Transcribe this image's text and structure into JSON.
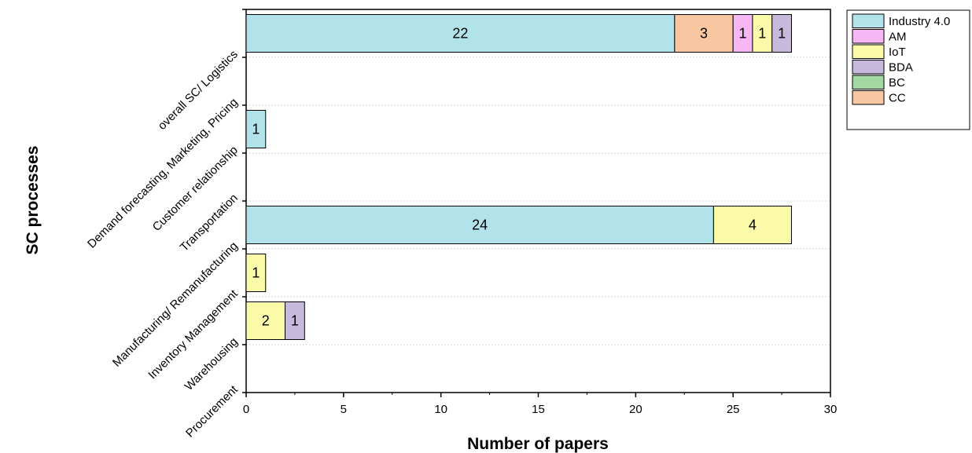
{
  "chart_data": {
    "type": "bar",
    "orientation": "horizontal",
    "stacked": true,
    "xlabel": "Number of papers",
    "ylabel": "SC processes",
    "xlim": [
      0,
      30
    ],
    "xticks": [
      0,
      5,
      10,
      15,
      20,
      25,
      30
    ],
    "grid": "horizontal dotted",
    "legend_position": "top-right",
    "categories": [
      "overall SC/ Logistics",
      "Demand forecasting, Marketing, Pricing",
      "Customer relationship",
      "Transportation",
      "Manufacturing/ Remanufacturing",
      "Inventory Management",
      "Warehousing",
      "Procurement"
    ],
    "series": [
      {
        "name": "Industry 4.0",
        "color": "#b3e3ea",
        "values": [
          22,
          0,
          1,
          0,
          24,
          0,
          0,
          0
        ]
      },
      {
        "name": "AM",
        "color": "#f6b7f4",
        "values": [
          1,
          0,
          0,
          0,
          0,
          0,
          0,
          0
        ]
      },
      {
        "name": "IoT",
        "color": "#fafaa8",
        "values": [
          1,
          0,
          0,
          0,
          4,
          1,
          2,
          0
        ]
      },
      {
        "name": "BDA",
        "color": "#c7b9dc",
        "values": [
          1,
          0,
          0,
          0,
          0,
          0,
          1,
          0
        ]
      },
      {
        "name": "BC",
        "color": "#a4d9a4",
        "values": [
          0,
          0,
          0,
          0,
          0,
          0,
          0,
          0
        ]
      },
      {
        "name": "CC",
        "color": "#f8c6a0",
        "values": [
          3,
          0,
          0,
          0,
          0,
          0,
          0,
          0
        ]
      }
    ],
    "stack_order": [
      "Industry 4.0",
      "CC",
      "AM",
      "IoT",
      "BDA",
      "BC"
    ]
  }
}
